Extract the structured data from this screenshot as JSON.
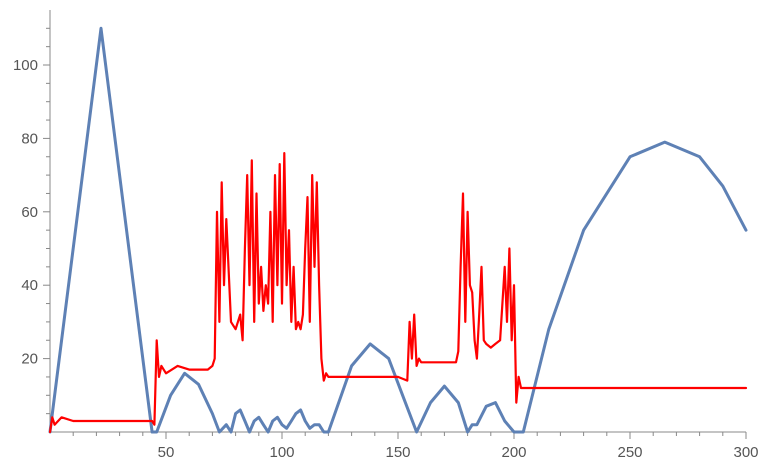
{
  "chart_data": {
    "type": "line",
    "xlim": [
      0,
      300
    ],
    "ylim": [
      0,
      110
    ],
    "x_ticks": [
      "50",
      "100",
      "150",
      "200",
      "250",
      "300"
    ],
    "y_ticks": [
      "20",
      "40",
      "60",
      "80",
      "100"
    ],
    "grid": false,
    "legend": "none",
    "series": [
      {
        "color": "#5E81B5",
        "x": [
          0,
          22,
          44,
          46,
          52,
          58,
          64,
          70,
          73,
          76,
          78,
          80,
          82,
          84,
          86,
          88,
          90,
          92,
          94,
          96,
          98,
          100,
          102,
          104,
          106,
          108,
          110,
          112,
          114,
          116,
          118,
          120,
          130,
          138,
          146,
          152,
          158,
          164,
          170,
          176,
          180,
          182,
          184,
          188,
          192,
          196,
          200,
          204,
          215,
          230,
          250,
          265,
          280,
          290,
          300
        ],
        "y": [
          0,
          110,
          0,
          0,
          10,
          16,
          13,
          5,
          0,
          2,
          0,
          5,
          6,
          3,
          0,
          3,
          4,
          2,
          0,
          3,
          4,
          2,
          1,
          3,
          5,
          6,
          3,
          1,
          2,
          2,
          0,
          0,
          18,
          24,
          20,
          10,
          0,
          8,
          12.5,
          8,
          0,
          2,
          2,
          7,
          8,
          3,
          0,
          0,
          28,
          55,
          75,
          79,
          75,
          67,
          55
        ]
      },
      {
        "color": "#FF0000",
        "x": [
          0,
          1,
          2,
          5,
          10,
          30,
          44,
          45,
          46,
          47,
          48,
          50,
          55,
          60,
          65,
          68,
          70,
          71,
          72,
          73,
          74,
          75,
          76,
          78,
          80,
          82,
          83,
          84,
          85,
          86,
          87,
          88,
          89,
          90,
          91,
          92,
          93,
          94,
          95,
          96,
          97,
          98,
          99,
          100,
          101,
          102,
          103,
          104,
          105,
          106,
          107,
          108,
          109,
          110,
          111,
          112,
          113,
          114,
          115,
          116,
          117,
          118,
          119,
          120,
          125,
          130,
          140,
          150,
          154,
          155,
          156,
          157,
          158,
          159,
          160,
          165,
          170,
          175,
          176,
          177,
          178,
          179,
          180,
          181,
          182,
          183,
          184,
          185,
          186,
          187,
          188,
          190,
          192,
          194,
          195,
          196,
          197,
          198,
          199,
          200,
          201,
          202,
          203,
          205,
          210,
          220,
          240,
          260,
          280,
          300
        ],
        "y": [
          0,
          4,
          2,
          4,
          3,
          3,
          3,
          2,
          25,
          15,
          18,
          16,
          18,
          17,
          17,
          17,
          18,
          20,
          60,
          30,
          68,
          40,
          58,
          30,
          28,
          32,
          25,
          50,
          70,
          40,
          74,
          30,
          65,
          35,
          45,
          33,
          40,
          35,
          60,
          30,
          70,
          40,
          73,
          35,
          76,
          40,
          55,
          30,
          45,
          28,
          30,
          28,
          32,
          50,
          64,
          30,
          70,
          45,
          68,
          40,
          20,
          14,
          16,
          15,
          15,
          15,
          15,
          15,
          14,
          30,
          20,
          32,
          18,
          20,
          19,
          19,
          19,
          19,
          22,
          45,
          65,
          30,
          60,
          40,
          38,
          25,
          20,
          32,
          45,
          25,
          24,
          23,
          24,
          25,
          35,
          45,
          30,
          50,
          25,
          40,
          8,
          15,
          12,
          12,
          12,
          12,
          12,
          12,
          12,
          12
        ]
      }
    ]
  }
}
